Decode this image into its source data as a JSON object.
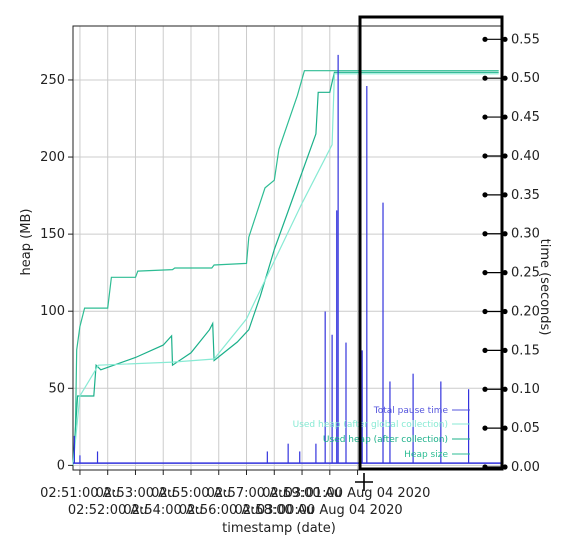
{
  "chart_data": {
    "type": "line",
    "x": {
      "label": "timestamp (date)",
      "range": [
        "02:50:45",
        "03:06:10"
      ],
      "ticks": [
        {
          "t": "02:51:00",
          "label": "02:51:00 Au",
          "row": 0
        },
        {
          "t": "02:52:00",
          "label": "02:52:00 Au",
          "row": 1
        },
        {
          "t": "02:53:00",
          "label": "02:53:00 Au",
          "row": 0
        },
        {
          "t": "02:54:00",
          "label": "02:54:00 Au",
          "row": 1
        },
        {
          "t": "02:55:00",
          "label": "02:55:00 Au",
          "row": 0
        },
        {
          "t": "02:56:00",
          "label": "02:56:00 Au",
          "row": 1
        },
        {
          "t": "02:57:00",
          "label": "02:57:00 Au",
          "row": 0
        },
        {
          "t": "02:58:00",
          "label": "02:58:00 Au",
          "row": 1
        },
        {
          "t": "02:59:00",
          "label": "02:59:00 Au",
          "row": 0
        },
        {
          "t": "03:00:00",
          "label": "03:00:00 Aug 04 2020",
          "row": 1
        },
        {
          "t": "03:01:00",
          "label": "03:01:00 Aug 04 2020",
          "row": 0
        }
      ]
    },
    "y_left": {
      "label": "heap (MB)",
      "range": [
        -3,
        285
      ],
      "ticks": [
        0,
        50,
        100,
        150,
        200,
        250
      ]
    },
    "y_right": {
      "label": "time (seconds)",
      "range": [
        0,
        0.58
      ],
      "ticks": [
        "0.00",
        "0.05",
        "0.10",
        "0.15",
        "0.20",
        "0.25",
        "0.30",
        "0.35",
        "0.40",
        "0.45",
        "0.50",
        "0.55"
      ]
    },
    "series": [
      {
        "name": "Heap size",
        "color": "#2ebd94",
        "axis": "left",
        "points": [
          [
            "02:50:45",
            0
          ],
          [
            "02:50:50",
            18
          ],
          [
            "02:50:53",
            75
          ],
          [
            "02:51:00",
            90
          ],
          [
            "02:51:10",
            102
          ],
          [
            "02:52:00",
            102
          ],
          [
            "02:52:08",
            122
          ],
          [
            "02:53:00",
            122
          ],
          [
            "02:53:05",
            126
          ],
          [
            "02:54:20",
            127
          ],
          [
            "02:54:25",
            128
          ],
          [
            "02:55:45",
            128
          ],
          [
            "02:55:50",
            130
          ],
          [
            "02:57:00",
            131
          ],
          [
            "02:57:05",
            148
          ],
          [
            "02:57:40",
            180
          ],
          [
            "02:58:00",
            185
          ],
          [
            "02:58:10",
            205
          ],
          [
            "02:58:50",
            240
          ],
          [
            "02:59:05",
            256
          ],
          [
            "03:01:00",
            256
          ],
          [
            "03:06:05",
            256
          ]
        ]
      },
      {
        "name": "Used heap (after collection)",
        "color": "#1bb08a",
        "axis": "left",
        "points": [
          [
            "02:50:45",
            0
          ],
          [
            "02:50:55",
            45
          ],
          [
            "02:51:30",
            45
          ],
          [
            "02:51:35",
            65
          ],
          [
            "02:51:45",
            62
          ],
          [
            "02:53:00",
            70
          ],
          [
            "02:54:00",
            78
          ],
          [
            "02:54:18",
            84
          ],
          [
            "02:54:20",
            65
          ],
          [
            "02:55:00",
            73
          ],
          [
            "02:55:40",
            88
          ],
          [
            "02:55:47",
            92
          ],
          [
            "02:55:50",
            68
          ],
          [
            "02:56:40",
            80
          ],
          [
            "02:57:05",
            88
          ],
          [
            "02:57:30",
            110
          ],
          [
            "02:58:00",
            140
          ],
          [
            "02:58:30",
            165
          ],
          [
            "02:59:00",
            190
          ],
          [
            "02:59:30",
            215
          ],
          [
            "02:59:35",
            242
          ],
          [
            "03:00:00",
            242
          ],
          [
            "03:00:10",
            255
          ],
          [
            "03:06:05",
            255
          ]
        ]
      },
      {
        "name": "Used heap (after global collection)",
        "color": "#88ead4",
        "axis": "left",
        "points": [
          [
            "02:50:45",
            0
          ],
          [
            "02:51:00",
            45
          ],
          [
            "02:51:40",
            65
          ],
          [
            "02:54:20",
            67
          ],
          [
            "02:55:50",
            69
          ],
          [
            "02:57:00",
            95
          ],
          [
            "02:59:00",
            170
          ],
          [
            "03:00:05",
            208
          ],
          [
            "03:00:10",
            254
          ],
          [
            "03:06:05",
            254
          ]
        ]
      },
      {
        "name": "Total pause time",
        "color": "#3333dd",
        "axis": "right",
        "baseline": 0.005,
        "spikes": [
          [
            "02:50:48",
            0.04
          ],
          [
            "02:51:00",
            0.015
          ],
          [
            "02:51:38",
            0.02
          ],
          [
            "02:57:45",
            0.02
          ],
          [
            "02:58:30",
            0.03
          ],
          [
            "02:58:55",
            0.02
          ],
          [
            "02:59:30",
            0.03
          ],
          [
            "02:59:50",
            0.2
          ],
          [
            "03:00:05",
            0.17
          ],
          [
            "03:00:15",
            0.33
          ],
          [
            "03:00:18",
            0.53
          ],
          [
            "03:00:35",
            0.16
          ],
          [
            "03:01:10",
            0.15
          ],
          [
            "03:01:20",
            0.49
          ],
          [
            "03:01:55",
            0.34
          ],
          [
            "03:02:10",
            0.11
          ],
          [
            "03:03:00",
            0.12
          ],
          [
            "03:04:00",
            0.11
          ],
          [
            "03:05:00",
            0.1
          ]
        ]
      }
    ],
    "legend": [
      "Total pause time",
      "Used heap (after global collection)",
      "Used heap (after collection)",
      "Heap size"
    ],
    "legend_position": "bottom-right",
    "grid": true
  }
}
